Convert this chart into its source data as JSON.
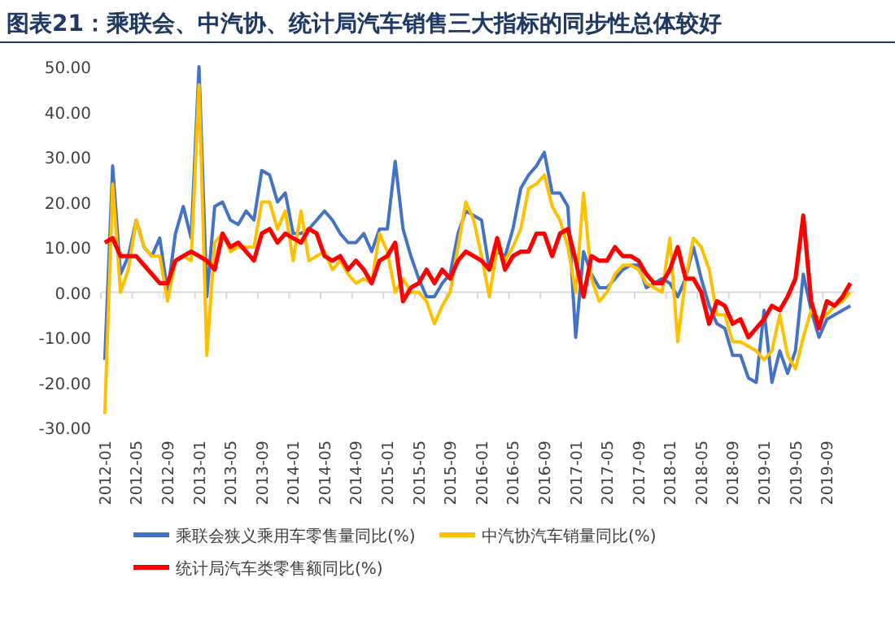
{
  "chart_data": {
    "type": "line",
    "title": "图表21：乘联会、中汽协、统计局汽车销售三大指标的同步性总体较好",
    "categories": [
      "2012-01",
      null,
      null,
      null,
      "2012-05",
      null,
      null,
      null,
      "2012-09",
      null,
      null,
      null,
      "2013-01",
      null,
      null,
      null,
      "2013-05",
      null,
      null,
      null,
      "2013-09",
      null,
      null,
      null,
      "2014-01",
      null,
      null,
      null,
      "2014-05",
      null,
      null,
      null,
      "2014-09",
      null,
      null,
      null,
      "2015-01",
      null,
      null,
      null,
      "2015-05",
      null,
      null,
      null,
      "2015-09",
      null,
      null,
      null,
      "2016-01",
      null,
      null,
      null,
      "2016-05",
      null,
      null,
      null,
      "2016-09",
      null,
      null,
      null,
      "2017-01",
      null,
      null,
      null,
      "2017-05",
      null,
      null,
      null,
      "2017-09",
      null,
      null,
      null,
      "2018-01",
      null,
      null,
      null,
      "2018-05",
      null,
      null,
      null,
      "2018-09",
      null,
      null,
      null,
      "2019-01",
      null,
      null,
      null,
      "2019-05",
      null,
      null,
      null,
      "2019-09",
      null,
      null,
      null
    ],
    "ylim": [
      -30,
      50
    ],
    "yticks": [
      {
        "value": -30,
        "label": "-30.00"
      },
      {
        "value": -20,
        "label": "-20.00"
      },
      {
        "value": -10,
        "label": "-10.00"
      },
      {
        "value": 0,
        "label": "0.00"
      },
      {
        "value": 10,
        "label": "10.00"
      },
      {
        "value": 20,
        "label": "20.00"
      },
      {
        "value": 30,
        "label": "30.00"
      },
      {
        "value": 40,
        "label": "40.00"
      },
      {
        "value": 50,
        "label": "50.00"
      }
    ],
    "grid": false,
    "ref_lines": [
      {
        "axis": "y",
        "value": 0,
        "color": "#d9d9d9"
      }
    ],
    "legend": "bottom",
    "marker": "none",
    "line_style": "solid",
    "series": [
      {
        "name": "乘联会狭义乘用车零售量同比(%)",
        "color": "#4472c4",
        "values": [
          -15,
          28,
          4,
          8,
          16,
          10,
          8,
          12,
          0,
          13,
          19,
          12,
          50,
          -1,
          19,
          20,
          16,
          15,
          18,
          16,
          27,
          26,
          20,
          22,
          13,
          13,
          14,
          16,
          18,
          16,
          13,
          11,
          11,
          13,
          9,
          14,
          14,
          29,
          14,
          8,
          3,
          -1,
          -1,
          2,
          4,
          13,
          18,
          17,
          16,
          5,
          9,
          8,
          14,
          23,
          26,
          28,
          31,
          22,
          22,
          19,
          -10,
          9,
          4,
          1,
          1,
          3,
          5,
          6,
          6,
          1,
          2,
          3,
          2,
          -1,
          3,
          10,
          3,
          -3,
          -7,
          -8,
          -14,
          -14,
          -19,
          -20,
          -4,
          -20,
          -13,
          -18,
          -13,
          4,
          -4,
          -10,
          -6,
          -5,
          -4,
          -3
        ]
      },
      {
        "name": "中汽协汽车销量同比(%)",
        "color": "#ffc000",
        "values": [
          -27,
          24,
          0,
          5,
          16,
          10,
          8,
          8,
          -2,
          7,
          8,
          7,
          46,
          -14,
          11,
          13,
          9,
          10,
          10,
          10,
          20,
          20,
          14,
          18,
          7,
          18,
          7,
          8,
          9,
          5,
          7,
          4,
          2,
          3,
          2,
          13,
          9,
          0,
          3,
          0,
          0,
          -2,
          -7,
          -3,
          0,
          10,
          20,
          16,
          8,
          -1,
          10,
          7,
          10,
          14,
          23,
          24,
          26,
          19,
          16,
          10,
          0,
          22,
          3,
          -2,
          0,
          4,
          6,
          6,
          5,
          2,
          1,
          0,
          12,
          -11,
          3,
          12,
          10,
          5,
          -5,
          -5,
          -11,
          -11,
          -12,
          -13,
          -15,
          -13,
          -5,
          -14,
          -17,
          -10,
          -4,
          -6,
          -5,
          -3,
          -2,
          0
        ]
      },
      {
        "name": "统计局汽车类零售额同比(%)",
        "color": "#ff0000",
        "values": [
          11,
          12,
          8,
          8,
          8,
          6,
          4,
          2,
          2,
          7,
          8,
          9,
          8,
          7,
          5,
          13,
          10,
          11,
          9,
          7,
          13,
          14,
          11,
          13,
          12,
          11,
          14,
          13,
          8,
          7,
          8,
          5,
          7,
          5,
          2,
          7,
          8,
          11,
          -2,
          1,
          2,
          5,
          2,
          5,
          3,
          7,
          9,
          8,
          7,
          5,
          12,
          5,
          8,
          9,
          9,
          13,
          13,
          8,
          13,
          14,
          7,
          -1,
          8,
          7,
          7,
          10,
          8,
          8,
          7,
          4,
          2,
          2,
          5,
          10,
          3,
          3,
          0,
          -7,
          -2,
          -3,
          -7,
          -6,
          -10,
          -8,
          -6,
          -3,
          -4,
          -1,
          3,
          17,
          -2,
          -8,
          -2,
          -3,
          -1,
          2
        ]
      }
    ]
  }
}
